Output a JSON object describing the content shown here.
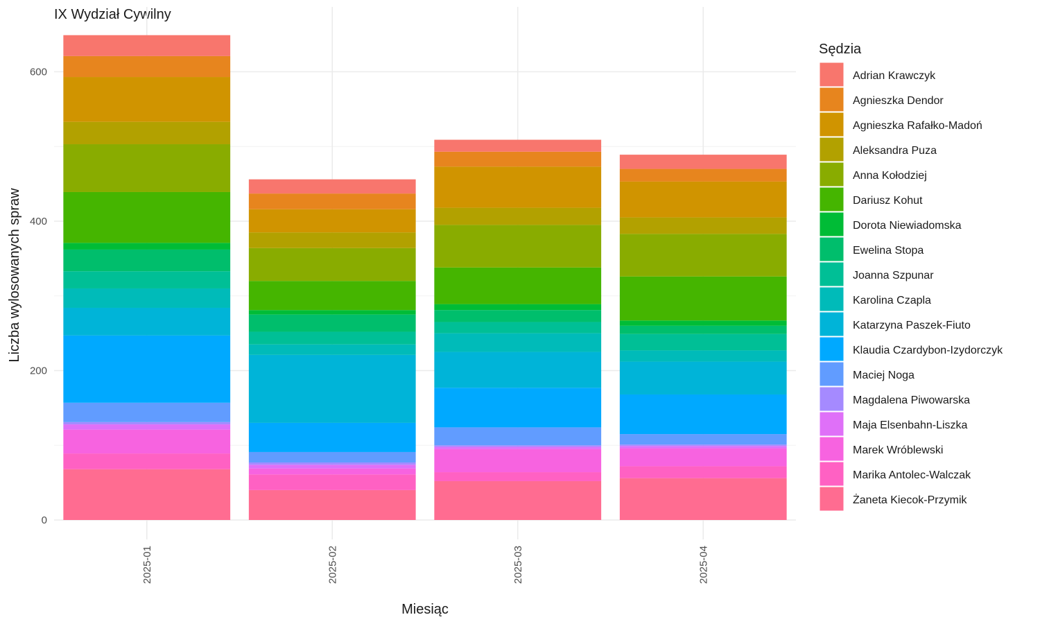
{
  "chart_data": {
    "type": "bar",
    "stacked": true,
    "title": "IX Wydział Cywilny",
    "xlabel": "Miesiąc",
    "ylabel": "Liczba wylosowanych spraw",
    "ylim": [
      0,
      650
    ],
    "yticks": [
      0,
      200,
      400,
      600
    ],
    "grid": true,
    "legend_title": "Sędzia",
    "legend_position": "right",
    "categories": [
      "2025-01",
      "2025-02",
      "2025-03",
      "2025-04"
    ],
    "series": [
      {
        "name": "Adrian Krawczyk",
        "color": "#F8766D",
        "values": [
          28,
          19,
          16,
          19
        ]
      },
      {
        "name": "Agnieszka Dendor",
        "color": "#E7851E",
        "values": [
          28,
          21,
          20,
          17
        ]
      },
      {
        "name": "Agnieszka Rafałko-Madoń",
        "color": "#D09400",
        "values": [
          60,
          31,
          55,
          48
        ]
      },
      {
        "name": "Aleksandra Puza",
        "color": "#B2A100",
        "values": [
          30,
          21,
          23,
          22
        ]
      },
      {
        "name": "Anna Kołodziej",
        "color": "#89AC00",
        "values": [
          64,
          44,
          57,
          57
        ]
      },
      {
        "name": "Dariusz Kohut",
        "color": "#45B500",
        "values": [
          68,
          39,
          49,
          59
        ]
      },
      {
        "name": "Dorota Niewiadomska",
        "color": "#00BC36",
        "values": [
          9,
          6,
          8,
          7
        ]
      },
      {
        "name": "Ewelina Stopa",
        "color": "#00BE6C",
        "values": [
          29,
          23,
          16,
          11
        ]
      },
      {
        "name": "Joanna Szpunar",
        "color": "#00BF96",
        "values": [
          23,
          17,
          15,
          22
        ]
      },
      {
        "name": "Karolina Czapla",
        "color": "#00BBB9",
        "values": [
          26,
          14,
          25,
          15
        ]
      },
      {
        "name": "Katarzyna Paszek-Fiuto",
        "color": "#00B4D8",
        "values": [
          37,
          91,
          48,
          44
        ]
      },
      {
        "name": "Klaudia Czardybon-Izydorczyk",
        "color": "#00A9FF",
        "values": [
          90,
          39,
          53,
          53
        ]
      },
      {
        "name": "Maciej Noga",
        "color": "#619CFF",
        "values": [
          26,
          14,
          24,
          14
        ]
      },
      {
        "name": "Magdalena Piwowarska",
        "color": "#A58AFF",
        "values": [
          3,
          3,
          2,
          2
        ]
      },
      {
        "name": "Maja Elsenbahn-Liszka",
        "color": "#DF70F8",
        "values": [
          7,
          5,
          3,
          3
        ]
      },
      {
        "name": "Marek Wróblewski",
        "color": "#F763E0",
        "values": [
          32,
          8,
          31,
          24
        ]
      },
      {
        "name": "Marika Antolec-Walczak",
        "color": "#FF61C3",
        "values": [
          21,
          21,
          12,
          16
        ]
      },
      {
        "name": "Żaneta Kiecok-Przymik",
        "color": "#FF6C91",
        "values": [
          68,
          40,
          52,
          56
        ]
      }
    ]
  }
}
